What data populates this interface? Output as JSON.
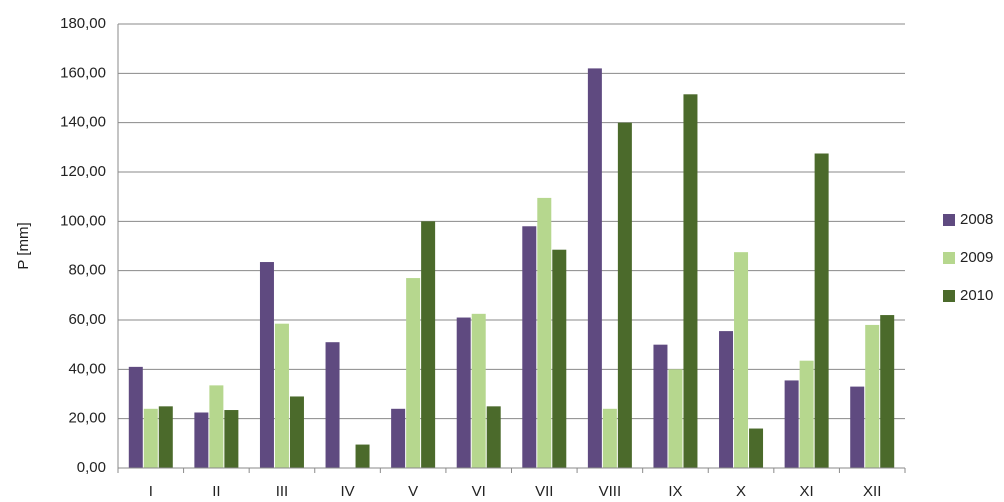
{
  "chart_data": {
    "type": "bar",
    "y_label": "P [mm]",
    "categories": [
      "I",
      "II",
      "III",
      "IV",
      "V",
      "VI",
      "VII",
      "VIII",
      "IX",
      "X",
      "XI",
      "XII"
    ],
    "series": [
      {
        "name": "2008",
        "color": "#5f4a80",
        "values": [
          41,
          22.5,
          83.5,
          51,
          24,
          61,
          98,
          162,
          50,
          55.5,
          35.5,
          33
        ]
      },
      {
        "name": "2009",
        "color": "#b6d78e",
        "values": [
          24,
          33.5,
          58.5,
          0,
          77,
          62.5,
          109.5,
          24,
          40,
          87.5,
          43.5,
          58
        ]
      },
      {
        "name": "2010",
        "color": "#4b6a2b",
        "values": [
          25,
          23.5,
          29,
          9.5,
          100,
          25,
          88.5,
          140,
          151.5,
          16,
          127.5,
          62
        ]
      }
    ],
    "ylim": [
      0,
      180
    ],
    "yticks": [
      {
        "value": 0,
        "label": "0,00"
      },
      {
        "value": 20,
        "label": "20,00"
      },
      {
        "value": 40,
        "label": "40,00"
      },
      {
        "value": 60,
        "label": "60,00"
      },
      {
        "value": 80,
        "label": "80,00"
      },
      {
        "value": 100,
        "label": "100,00"
      },
      {
        "value": 120,
        "label": "120,00"
      },
      {
        "value": 140,
        "label": "140,00"
      },
      {
        "value": 160,
        "label": "160,00"
      },
      {
        "value": 180,
        "label": "180,00"
      }
    ],
    "grid": true,
    "legend": "right"
  }
}
